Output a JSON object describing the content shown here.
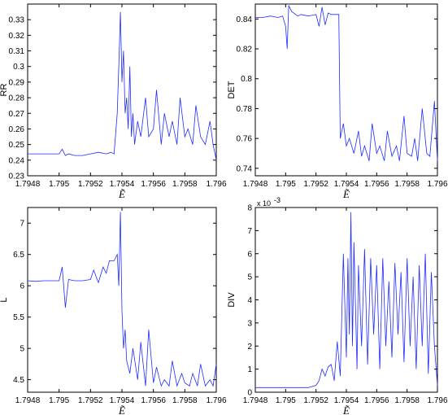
{
  "chart_data": [
    {
      "type": "line",
      "ylabel": "RR",
      "xlabel": "Ẽ",
      "xlim": [
        1.7948,
        1.796
      ],
      "ylim": [
        0.23,
        0.34
      ],
      "xticks": [
        "1.7948",
        "1.795",
        "1.7952",
        "1.7954",
        "1.7956",
        "1.7958",
        "1.796"
      ],
      "yticks": [
        "0.23",
        "0.24",
        "0.25",
        "0.26",
        "0.27",
        "0.28",
        "0.29",
        "0.3",
        "0.31",
        "0.32",
        "0.33"
      ],
      "line_color": "#1f2bff",
      "series": [
        {
          "x": [
            1.7948,
            1.79485,
            1.7949,
            1.79495,
            1.795,
            1.79502,
            1.79504,
            1.79506,
            1.7951,
            1.79515,
            1.7952,
            1.79525,
            1.7953,
            1.79533,
            1.79535,
            1.79537,
            1.79538,
            1.79539,
            1.7954,
            1.79541,
            1.79542,
            1.79543,
            1.79544,
            1.79545,
            1.79546,
            1.79547,
            1.79548,
            1.7955,
            1.79552,
            1.79555,
            1.79557,
            1.7956,
            1.79562,
            1.79565,
            1.79567,
            1.7957,
            1.79572,
            1.79575,
            1.79577,
            1.7958,
            1.79582,
            1.79585,
            1.79587,
            1.7959,
            1.79593,
            1.79596,
            1.79598,
            1.796
          ],
          "y": [
            0.244,
            0.244,
            0.244,
            0.244,
            0.244,
            0.247,
            0.243,
            0.244,
            0.243,
            0.243,
            0.244,
            0.245,
            0.244,
            0.245,
            0.244,
            0.27,
            0.3,
            0.335,
            0.29,
            0.31,
            0.27,
            0.28,
            0.26,
            0.3,
            0.255,
            0.27,
            0.25,
            0.265,
            0.255,
            0.28,
            0.255,
            0.26,
            0.285,
            0.25,
            0.27,
            0.255,
            0.265,
            0.25,
            0.28,
            0.255,
            0.26,
            0.25,
            0.275,
            0.255,
            0.25,
            0.265,
            0.25,
            0.24
          ]
        }
      ]
    },
    {
      "type": "line",
      "ylabel": "DET",
      "xlabel": "Ẽ",
      "xlim": [
        1.7948,
        1.796
      ],
      "ylim": [
        0.735,
        0.85
      ],
      "xticks": [
        "1.7948",
        "1.795",
        "1.7952",
        "1.7954",
        "1.7956",
        "1.7958",
        "1.796"
      ],
      "yticks": [
        "0.74",
        "0.76",
        "0.78",
        "0.8",
        "0.82",
        "0.84"
      ],
      "line_color": "#1f2bff",
      "series": [
        {
          "x": [
            1.7948,
            1.79485,
            1.7949,
            1.79495,
            1.79498,
            1.795,
            1.79501,
            1.79502,
            1.79504,
            1.79508,
            1.7951,
            1.79515,
            1.7952,
            1.79522,
            1.79524,
            1.79526,
            1.79528,
            1.7953,
            1.79533,
            1.79535,
            1.79536,
            1.79538,
            1.7954,
            1.79542,
            1.79545,
            1.79548,
            1.7955,
            1.79552,
            1.79555,
            1.79557,
            1.7956,
            1.79562,
            1.79565,
            1.79567,
            1.7957,
            1.79573,
            1.79575,
            1.79578,
            1.7958,
            1.79583,
            1.79585,
            1.79587,
            1.7959,
            1.79593,
            1.79595,
            1.79598,
            1.796
          ],
          "y": [
            0.841,
            0.841,
            0.842,
            0.841,
            0.842,
            0.835,
            0.82,
            0.849,
            0.845,
            0.842,
            0.843,
            0.842,
            0.843,
            0.835,
            0.848,
            0.836,
            0.844,
            0.843,
            0.843,
            0.843,
            0.76,
            0.77,
            0.755,
            0.76,
            0.75,
            0.765,
            0.748,
            0.755,
            0.745,
            0.77,
            0.75,
            0.755,
            0.745,
            0.765,
            0.748,
            0.755,
            0.745,
            0.775,
            0.75,
            0.748,
            0.76,
            0.745,
            0.78,
            0.75,
            0.748,
            0.785,
            0.745
          ]
        }
      ]
    },
    {
      "type": "line",
      "ylabel": "L",
      "xlabel": "Ẽ",
      "xlim": [
        1.7948,
        1.796
      ],
      "ylim": [
        4.3,
        7.25
      ],
      "xticks": [
        "1.7948",
        "1.795",
        "1.7952",
        "1.7954",
        "1.7956",
        "1.7958",
        "1.796"
      ],
      "yticks": [
        "4.5",
        "5",
        "5.5",
        "6",
        "6.5",
        "7"
      ],
      "line_color": "#1f2bff",
      "series": [
        {
          "x": [
            1.7948,
            1.79485,
            1.7949,
            1.79495,
            1.795,
            1.79502,
            1.79504,
            1.79506,
            1.7951,
            1.79515,
            1.7952,
            1.79522,
            1.79525,
            1.79528,
            1.7953,
            1.79532,
            1.79535,
            1.79537,
            1.79538,
            1.79539,
            1.7954,
            1.79541,
            1.79542,
            1.79543,
            1.79545,
            1.79547,
            1.7955,
            1.79552,
            1.79555,
            1.79557,
            1.7956,
            1.79562,
            1.79565,
            1.79567,
            1.7957,
            1.79572,
            1.79575,
            1.79578,
            1.7958,
            1.79583,
            1.79585,
            1.79588,
            1.7959,
            1.79593,
            1.79596,
            1.79598,
            1.796
          ],
          "y": [
            6.08,
            6.07,
            6.08,
            6.08,
            6.08,
            6.3,
            5.65,
            6.1,
            6.08,
            6.08,
            6.1,
            6.25,
            6.05,
            6.3,
            6.2,
            6.4,
            6.4,
            6.5,
            6.0,
            7.18,
            5.6,
            5.0,
            5.3,
            4.8,
            4.6,
            5.0,
            4.5,
            5.1,
            4.4,
            5.3,
            4.45,
            4.7,
            4.4,
            4.5,
            4.4,
            4.8,
            4.4,
            4.6,
            4.45,
            4.4,
            4.6,
            4.4,
            4.75,
            4.4,
            4.5,
            4.4,
            4.75
          ]
        }
      ]
    },
    {
      "type": "line",
      "ylabel": "DIV",
      "xlabel": "Ẽ",
      "xlim": [
        1.7948,
        1.796
      ],
      "ylim": [
        0,
        0.008
      ],
      "xticks": [
        "1.7948",
        "1.795",
        "1.7952",
        "1.7954",
        "1.7956",
        "1.7958",
        "1.796"
      ],
      "yticks": [
        "0",
        "1",
        "2",
        "3",
        "4",
        "5",
        "6",
        "7",
        "8"
      ],
      "exponent_label": "x 10",
      "exponent": "-3",
      "line_color": "#1f2bff",
      "series": [
        {
          "x": [
            1.7948,
            1.79485,
            1.7949,
            1.79495,
            1.795,
            1.79505,
            1.7951,
            1.79515,
            1.7952,
            1.79522,
            1.79524,
            1.79526,
            1.79528,
            1.7953,
            1.79532,
            1.79534,
            1.79536,
            1.79538,
            1.7954,
            1.79541,
            1.79542,
            1.79543,
            1.79544,
            1.79545,
            1.79547,
            1.79548,
            1.7955,
            1.79552,
            1.79554,
            1.79556,
            1.79558,
            1.7956,
            1.79562,
            1.79564,
            1.79566,
            1.79568,
            1.7957,
            1.79572,
            1.79574,
            1.79576,
            1.79578,
            1.7958,
            1.79582,
            1.79584,
            1.79586,
            1.79588,
            1.7959,
            1.79592,
            1.79594,
            1.79596,
            1.79598,
            1.796
          ],
          "y": [
            0.0002,
            0.0002,
            0.0002,
            0.0002,
            0.0002,
            0.0002,
            0.0002,
            0.0002,
            0.0003,
            0.0005,
            0.001,
            0.0007,
            0.0011,
            0.0012,
            0.0005,
            0.0022,
            0.0007,
            0.006,
            0.0015,
            0.0058,
            0.0025,
            0.0078,
            0.002,
            0.0065,
            0.001,
            0.0055,
            0.002,
            0.0062,
            0.0012,
            0.0058,
            0.0025,
            0.0055,
            0.001,
            0.0058,
            0.002,
            0.0048,
            0.0015,
            0.0056,
            0.0025,
            0.0052,
            0.0013,
            0.0058,
            0.002,
            0.005,
            0.001,
            0.0055,
            0.002,
            0.006,
            0.0008,
            0.0052,
            0.002,
            0.0003
          ]
        }
      ]
    }
  ]
}
